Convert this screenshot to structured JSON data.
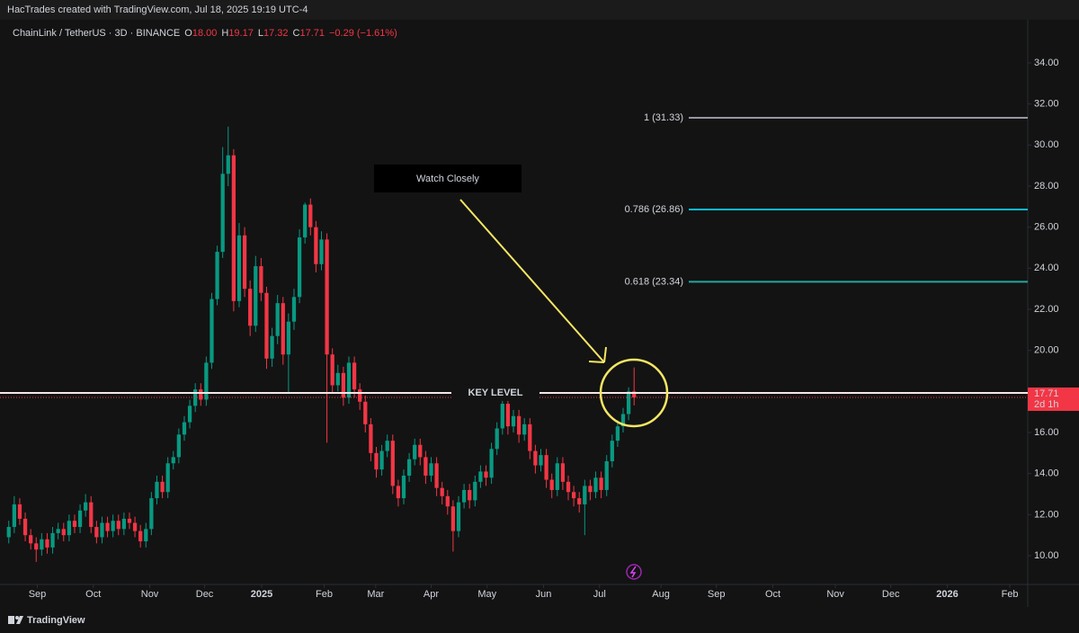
{
  "header": {
    "text": "HacTrades created with TradingView.com, Jul 18, 2025 19:19 UTC-4"
  },
  "footer": {
    "brand": "TradingView"
  },
  "chart_data": {
    "type": "candlestick",
    "symbol": "ChainLink / TetherUS · 3D · BINANCE",
    "ohlc_legend": {
      "open_key": "O",
      "open": "18.00",
      "high_key": "H",
      "high": "19.17",
      "low_key": "L",
      "low": "17.32",
      "close_key": "C",
      "close": "17.71",
      "change": "−0.29 (−1.61%)"
    },
    "up_color": "#089981",
    "down_color": "#f23645",
    "candles": [
      [
        10.9,
        11.7,
        10.6,
        11.4
      ],
      [
        11.4,
        12.9,
        11.1,
        12.5
      ],
      [
        12.5,
        12.8,
        11.5,
        11.8
      ],
      [
        11.8,
        12.1,
        10.7,
        11.0
      ],
      [
        11.0,
        11.3,
        10.3,
        10.6
      ],
      [
        10.6,
        10.9,
        9.7,
        10.3
      ],
      [
        10.3,
        11.1,
        10.0,
        10.8
      ],
      [
        10.8,
        11.1,
        10.1,
        10.4
      ],
      [
        10.4,
        11.4,
        10.1,
        11.1
      ],
      [
        11.1,
        11.6,
        10.8,
        11.3
      ],
      [
        11.3,
        11.6,
        10.7,
        11.0
      ],
      [
        11.0,
        12.0,
        10.7,
        11.7
      ],
      [
        11.7,
        12.0,
        11.1,
        11.4
      ],
      [
        11.4,
        12.5,
        11.1,
        12.2
      ],
      [
        12.2,
        13.0,
        11.9,
        12.6
      ],
      [
        12.6,
        12.9,
        11.1,
        11.4
      ],
      [
        11.4,
        11.7,
        10.6,
        10.9
      ],
      [
        10.9,
        11.9,
        10.6,
        11.6
      ],
      [
        11.6,
        11.9,
        10.9,
        11.2
      ],
      [
        11.2,
        12.0,
        10.9,
        11.7
      ],
      [
        11.7,
        12.0,
        11.0,
        11.3
      ],
      [
        11.3,
        12.1,
        11.0,
        11.8
      ],
      [
        11.8,
        12.1,
        11.3,
        11.6
      ],
      [
        11.6,
        11.9,
        10.9,
        11.2
      ],
      [
        11.2,
        11.5,
        10.4,
        10.7
      ],
      [
        10.7,
        11.6,
        10.4,
        11.3
      ],
      [
        11.3,
        13.1,
        11.0,
        12.8
      ],
      [
        12.8,
        13.9,
        12.5,
        13.6
      ],
      [
        13.6,
        13.9,
        12.8,
        13.1
      ],
      [
        13.1,
        14.8,
        12.8,
        14.5
      ],
      [
        14.5,
        15.1,
        14.2,
        14.8
      ],
      [
        14.8,
        16.2,
        14.5,
        15.9
      ],
      [
        15.9,
        16.8,
        15.6,
        16.5
      ],
      [
        16.5,
        17.6,
        16.2,
        17.3
      ],
      [
        17.3,
        18.4,
        17.0,
        18.1
      ],
      [
        18.1,
        18.4,
        17.3,
        17.6
      ],
      [
        17.6,
        19.7,
        17.3,
        19.4
      ],
      [
        19.4,
        22.8,
        19.1,
        22.5
      ],
      [
        22.5,
        25.1,
        22.2,
        24.8
      ],
      [
        24.8,
        29.9,
        24.5,
        28.6
      ],
      [
        28.6,
        30.9,
        28.0,
        29.5
      ],
      [
        29.5,
        29.8,
        21.9,
        22.4
      ],
      [
        22.4,
        26.2,
        22.1,
        25.6
      ],
      [
        25.6,
        26.0,
        22.6,
        23.0
      ],
      [
        23.0,
        23.4,
        20.7,
        21.2
      ],
      [
        21.2,
        24.6,
        20.9,
        24.1
      ],
      [
        24.1,
        24.5,
        22.4,
        22.8
      ],
      [
        22.8,
        23.1,
        19.1,
        19.6
      ],
      [
        19.6,
        21.1,
        19.2,
        20.7
      ],
      [
        20.7,
        22.7,
        20.3,
        22.3
      ],
      [
        22.3,
        22.6,
        19.3,
        19.8
      ],
      [
        19.8,
        21.8,
        17.9,
        21.4
      ],
      [
        21.4,
        23.0,
        21.0,
        22.6
      ],
      [
        22.6,
        25.9,
        22.3,
        25.5
      ],
      [
        25.5,
        27.2,
        25.2,
        27.1
      ],
      [
        27.1,
        27.4,
        25.6,
        26.0
      ],
      [
        26.0,
        26.3,
        23.8,
        24.2
      ],
      [
        24.2,
        25.8,
        23.9,
        25.4
      ],
      [
        25.4,
        25.7,
        15.5,
        19.8
      ],
      [
        19.8,
        20.1,
        17.9,
        18.3
      ],
      [
        18.3,
        19.3,
        18.0,
        18.9
      ],
      [
        18.9,
        19.2,
        17.3,
        17.7
      ],
      [
        17.7,
        19.7,
        17.4,
        19.4
      ],
      [
        19.4,
        19.7,
        17.7,
        18.1
      ],
      [
        18.1,
        18.4,
        17.1,
        17.5
      ],
      [
        17.5,
        17.8,
        16.0,
        16.4
      ],
      [
        16.4,
        16.7,
        14.6,
        15.0
      ],
      [
        15.0,
        15.3,
        13.8,
        14.2
      ],
      [
        14.2,
        15.4,
        13.9,
        15.1
      ],
      [
        15.1,
        15.9,
        14.8,
        15.6
      ],
      [
        15.6,
        15.9,
        13.0,
        13.4
      ],
      [
        13.4,
        13.7,
        12.4,
        12.8
      ],
      [
        12.8,
        14.2,
        12.5,
        13.9
      ],
      [
        13.9,
        15.0,
        13.6,
        14.7
      ],
      [
        14.7,
        15.7,
        14.4,
        15.4
      ],
      [
        15.4,
        15.7,
        14.4,
        14.8
      ],
      [
        14.8,
        15.1,
        13.5,
        13.9
      ],
      [
        13.9,
        14.8,
        13.6,
        14.5
      ],
      [
        14.5,
        14.8,
        12.9,
        13.3
      ],
      [
        13.3,
        13.6,
        12.5,
        12.9
      ],
      [
        12.9,
        13.2,
        12.0,
        12.4
      ],
      [
        12.4,
        12.7,
        10.2,
        11.2
      ],
      [
        11.2,
        12.9,
        10.9,
        12.6
      ],
      [
        12.6,
        13.5,
        12.3,
        13.2
      ],
      [
        13.2,
        13.5,
        12.3,
        12.7
      ],
      [
        12.7,
        13.9,
        12.4,
        13.6
      ],
      [
        13.6,
        14.4,
        13.3,
        14.1
      ],
      [
        14.1,
        14.4,
        13.4,
        13.8
      ],
      [
        13.8,
        15.5,
        13.5,
        15.2
      ],
      [
        15.2,
        16.5,
        14.9,
        16.2
      ],
      [
        16.2,
        17.7,
        15.9,
        17.4
      ],
      [
        17.4,
        17.7,
        15.9,
        16.3
      ],
      [
        16.3,
        17.1,
        16.0,
        16.8
      ],
      [
        16.8,
        17.1,
        15.5,
        15.9
      ],
      [
        15.9,
        16.7,
        15.6,
        16.4
      ],
      [
        16.4,
        16.7,
        14.7,
        15.1
      ],
      [
        15.1,
        15.4,
        14.0,
        14.4
      ],
      [
        14.4,
        15.2,
        14.1,
        14.9
      ],
      [
        14.9,
        15.2,
        13.3,
        13.7
      ],
      [
        13.7,
        14.0,
        12.8,
        13.2
      ],
      [
        13.2,
        14.8,
        12.9,
        14.5
      ],
      [
        14.5,
        14.8,
        13.2,
        13.6
      ],
      [
        13.6,
        13.9,
        12.7,
        13.1
      ],
      [
        13.1,
        13.4,
        12.4,
        12.8
      ],
      [
        12.8,
        13.1,
        12.1,
        12.5
      ],
      [
        12.5,
        13.7,
        11.0,
        13.4
      ],
      [
        13.4,
        13.7,
        12.7,
        13.1
      ],
      [
        13.1,
        14.1,
        12.8,
        13.8
      ],
      [
        13.8,
        14.1,
        12.8,
        13.2
      ],
      [
        13.2,
        14.9,
        12.9,
        14.6
      ],
      [
        14.6,
        15.9,
        14.3,
        15.6
      ],
      [
        15.6,
        16.6,
        15.3,
        16.3
      ],
      [
        16.3,
        17.2,
        16.0,
        16.9
      ],
      [
        16.9,
        18.2,
        16.6,
        18.0
      ],
      [
        18.0,
        19.17,
        17.32,
        17.71
      ]
    ],
    "xlim": [
      -1.6,
      185.6
    ],
    "xticks": [
      {
        "value": 5.2,
        "label": "Sep"
      },
      {
        "value": 15.4,
        "label": "Oct"
      },
      {
        "value": 25.7,
        "label": "Nov"
      },
      {
        "value": 35.7,
        "label": "Dec"
      },
      {
        "value": 46.1,
        "label": "2025"
      },
      {
        "value": 57.5,
        "label": "Feb"
      },
      {
        "value": 66.9,
        "label": "Mar"
      },
      {
        "value": 77.0,
        "label": "Apr"
      },
      {
        "value": 87.2,
        "label": "May"
      },
      {
        "value": 97.5,
        "label": "Jun"
      },
      {
        "value": 107.7,
        "label": "Jul"
      },
      {
        "value": 118.9,
        "label": "Aug"
      },
      {
        "value": 129.0,
        "label": "Sep"
      },
      {
        "value": 139.3,
        "label": "Oct"
      },
      {
        "value": 150.7,
        "label": "Nov"
      },
      {
        "value": 160.8,
        "label": "Dec"
      },
      {
        "value": 171.1,
        "label": "2026"
      },
      {
        "value": 182.5,
        "label": "Feb"
      }
    ],
    "ylim": [
      8.6,
      35.97
    ],
    "yticks": [
      {
        "value": 10,
        "label": "10.00"
      },
      {
        "value": 12,
        "label": "12.00"
      },
      {
        "value": 14,
        "label": "14.00"
      },
      {
        "value": 16,
        "label": "16.00"
      },
      {
        "value": 18,
        "label": "18.00"
      },
      {
        "value": 20,
        "label": "20.00"
      },
      {
        "value": 22,
        "label": "22.00"
      },
      {
        "value": 24,
        "label": "24.00"
      },
      {
        "value": 26,
        "label": "26.00"
      },
      {
        "value": 28,
        "label": "28.00"
      },
      {
        "value": 30,
        "label": "30.00"
      },
      {
        "value": 32,
        "label": "32.00"
      },
      {
        "value": 34,
        "label": "34.00"
      }
    ],
    "grid": false,
    "fib_levels": [
      {
        "value": 31.33,
        "label": "1 (31.33)",
        "color": "#9598a1"
      },
      {
        "value": 26.86,
        "label": "0.786 (26.86)",
        "color": "#00bcd4"
      },
      {
        "value": 23.34,
        "label": "0.618 (23.34)",
        "color": "#26a69a"
      }
    ],
    "key_level": {
      "value": 17.93,
      "label": "KEY LEVEL"
    },
    "last_price": 17.71,
    "countdown": "2d 1h",
    "annotation": "Watch Closely"
  }
}
